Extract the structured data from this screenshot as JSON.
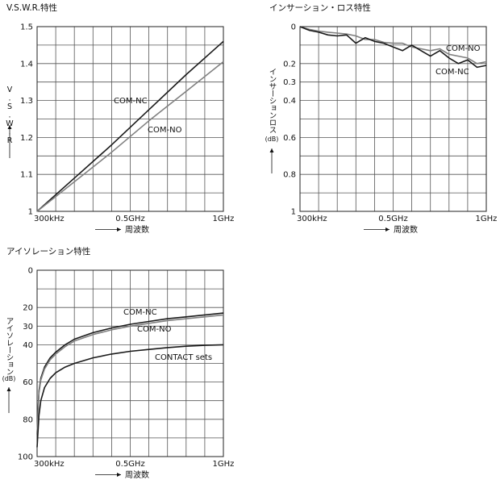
{
  "colors": {
    "black_series": "#1a1a1a",
    "gray_series": "#808080",
    "grid": "#555555"
  },
  "axis_common": {
    "xlabel": "周波数",
    "xticks": [
      "300kHz",
      "0.5GHz",
      "1GHz"
    ]
  },
  "chart_data": [
    {
      "type": "line",
      "title": "V.S.W.R.特性",
      "ylabel": "V.S.W.R",
      "xlabel": "周波数",
      "xlim": [
        0,
        1
      ],
      "ylim": [
        1,
        1.5
      ],
      "y_reversed": false,
      "xtick_labels": [
        "300kHz",
        "0.5GHz",
        "1GHz"
      ],
      "ytick_values": [
        1,
        1.1,
        1.2,
        1.3,
        1.4,
        1.5
      ],
      "ytick_labels": [
        "1",
        "1.1",
        "1.2",
        "1.3",
        "1.4",
        "1.5"
      ],
      "grid": true,
      "series": [
        {
          "name": "COM-NC",
          "color": "#1a1a1a",
          "x": [
            0,
            0.2,
            0.4,
            0.6,
            0.8,
            1.0
          ],
          "y": [
            1.0,
            1.09,
            1.18,
            1.275,
            1.37,
            1.46
          ]
        },
        {
          "name": "COM-NO",
          "color": "#808080",
          "x": [
            0,
            0.2,
            0.4,
            0.6,
            0.8,
            1.0
          ],
          "y": [
            1.0,
            1.08,
            1.16,
            1.245,
            1.325,
            1.405
          ]
        }
      ]
    },
    {
      "type": "line",
      "title": "インサーション・ロス特性",
      "ylabel": "インサーションロス",
      "yunit": "(dB)",
      "xlabel": "周波数",
      "xlim": [
        0,
        1
      ],
      "ylim": [
        0,
        1
      ],
      "y_reversed": true,
      "xtick_labels": [
        "300kHz",
        "0.5GHz",
        "1GHz"
      ],
      "ytick_values": [
        0,
        0.2,
        0.3,
        0.4,
        0.6,
        0.8,
        1
      ],
      "ytick_labels": [
        "0",
        "0.2",
        "0.3",
        "0.4",
        "0.6",
        "0.8",
        "1"
      ],
      "grid": true,
      "series": [
        {
          "name": "COM-NO",
          "color": "#808080",
          "x": [
            0,
            0.05,
            0.1,
            0.15,
            0.2,
            0.25,
            0.3,
            0.35,
            0.4,
            0.45,
            0.5,
            0.55,
            0.6,
            0.65,
            0.7,
            0.75,
            0.8,
            0.85,
            0.9,
            0.95,
            1.0
          ],
          "y": [
            0,
            0.015,
            0.025,
            0.03,
            0.035,
            0.04,
            0.05,
            0.07,
            0.07,
            0.085,
            0.09,
            0.09,
            0.11,
            0.12,
            0.13,
            0.12,
            0.15,
            0.16,
            0.17,
            0.2,
            0.19
          ]
        },
        {
          "name": "COM-NC",
          "color": "#1a1a1a",
          "x": [
            0,
            0.05,
            0.1,
            0.15,
            0.2,
            0.25,
            0.3,
            0.35,
            0.4,
            0.45,
            0.5,
            0.55,
            0.6,
            0.65,
            0.7,
            0.75,
            0.8,
            0.85,
            0.9,
            0.95,
            1.0
          ],
          "y": [
            0,
            0.02,
            0.03,
            0.045,
            0.05,
            0.045,
            0.09,
            0.06,
            0.08,
            0.09,
            0.11,
            0.13,
            0.1,
            0.13,
            0.16,
            0.13,
            0.17,
            0.2,
            0.18,
            0.22,
            0.21
          ]
        }
      ]
    },
    {
      "type": "line",
      "title": "アイソレーション特性",
      "ylabel": "アイソレーション",
      "yunit": "(dB)",
      "xlabel": "周波数",
      "xlim": [
        0,
        1
      ],
      "ylim": [
        0,
        100
      ],
      "y_reversed": true,
      "xtick_labels": [
        "300kHz",
        "0.5GHz",
        "1GHz"
      ],
      "ytick_values": [
        0,
        20,
        30,
        40,
        60,
        80,
        100
      ],
      "ytick_labels": [
        "0",
        "20",
        "30",
        "40",
        "60",
        "80",
        "100"
      ],
      "grid": true,
      "series": [
        {
          "name": "COM-NC",
          "color": "#1a1a1a",
          "x": [
            0,
            0.01,
            0.02,
            0.04,
            0.07,
            0.1,
            0.15,
            0.2,
            0.3,
            0.4,
            0.5,
            0.6,
            0.7,
            0.8,
            0.9,
            1.0
          ],
          "y": [
            88,
            65,
            58,
            52,
            47,
            44,
            40,
            37,
            33.5,
            31,
            29,
            27.5,
            26,
            25,
            24,
            23
          ]
        },
        {
          "name": "COM-NO",
          "color": "#808080",
          "x": [
            0,
            0.01,
            0.02,
            0.04,
            0.07,
            0.1,
            0.15,
            0.2,
            0.3,
            0.4,
            0.5,
            0.6,
            0.7,
            0.8,
            0.9,
            1.0
          ],
          "y": [
            88,
            66,
            59,
            53,
            48,
            45,
            41,
            38,
            34.5,
            32,
            30,
            28.5,
            27,
            26,
            25,
            24
          ]
        },
        {
          "name": "CONTACT sets",
          "color": "#1a1a1a",
          "x": [
            0,
            0.01,
            0.02,
            0.04,
            0.07,
            0.1,
            0.15,
            0.2,
            0.3,
            0.4,
            0.5,
            0.6,
            0.7,
            0.8,
            0.9,
            1.0
          ],
          "y": [
            95,
            78,
            70,
            63,
            58,
            55,
            52,
            50,
            47,
            45,
            43.5,
            42.5,
            41.5,
            40.8,
            40.3,
            40
          ]
        }
      ]
    }
  ]
}
